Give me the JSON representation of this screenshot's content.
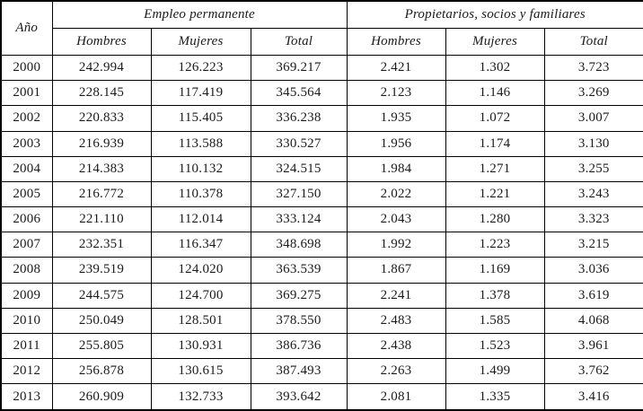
{
  "table": {
    "year_header": "Año",
    "groups": [
      {
        "label": "Empleo permanente",
        "columns": [
          "Hombres",
          "Mujeres",
          "Total"
        ]
      },
      {
        "label": "Propietarios, socios y familiares",
        "columns": [
          "Hombres",
          "Mujeres",
          "Total"
        ]
      }
    ],
    "rows": [
      {
        "year": "2000",
        "values": [
          "242.994",
          "126.223",
          "369.217",
          "2.421",
          "1.302",
          "3.723"
        ]
      },
      {
        "year": "2001",
        "values": [
          "228.145",
          "117.419",
          "345.564",
          "2.123",
          "1.146",
          "3.269"
        ]
      },
      {
        "year": "2002",
        "values": [
          "220.833",
          "115.405",
          "336.238",
          "1.935",
          "1.072",
          "3.007"
        ]
      },
      {
        "year": "2003",
        "values": [
          "216.939",
          "113.588",
          "330.527",
          "1.956",
          "1.174",
          "3.130"
        ]
      },
      {
        "year": "2004",
        "values": [
          "214.383",
          "110.132",
          "324.515",
          "1.984",
          "1.271",
          "3.255"
        ]
      },
      {
        "year": "2005",
        "values": [
          "216.772",
          "110.378",
          "327.150",
          "2.022",
          "1.221",
          "3.243"
        ]
      },
      {
        "year": "2006",
        "values": [
          "221.110",
          "112.014",
          "333.124",
          "2.043",
          "1.280",
          "3.323"
        ]
      },
      {
        "year": "2007",
        "values": [
          "232.351",
          "116.347",
          "348.698",
          "1.992",
          "1.223",
          "3.215"
        ]
      },
      {
        "year": "2008",
        "values": [
          "239.519",
          "124.020",
          "363.539",
          "1.867",
          "1.169",
          "3.036"
        ]
      },
      {
        "year": "2009",
        "values": [
          "244.575",
          "124.700",
          "369.275",
          "2.241",
          "1.378",
          "3.619"
        ]
      },
      {
        "year": "2010",
        "values": [
          "250.049",
          "128.501",
          "378.550",
          "2.483",
          "1.585",
          "4.068"
        ]
      },
      {
        "year": "2011",
        "values": [
          "255.805",
          "130.931",
          "386.736",
          "2.438",
          "1.523",
          "3.961"
        ]
      },
      {
        "year": "2012",
        "values": [
          "256.878",
          "130.615",
          "387.493",
          "2.263",
          "1.499",
          "3.762"
        ]
      },
      {
        "year": "2013",
        "values": [
          "260.909",
          "132.733",
          "393.642",
          "2.081",
          "1.335",
          "3.416"
        ]
      }
    ]
  }
}
